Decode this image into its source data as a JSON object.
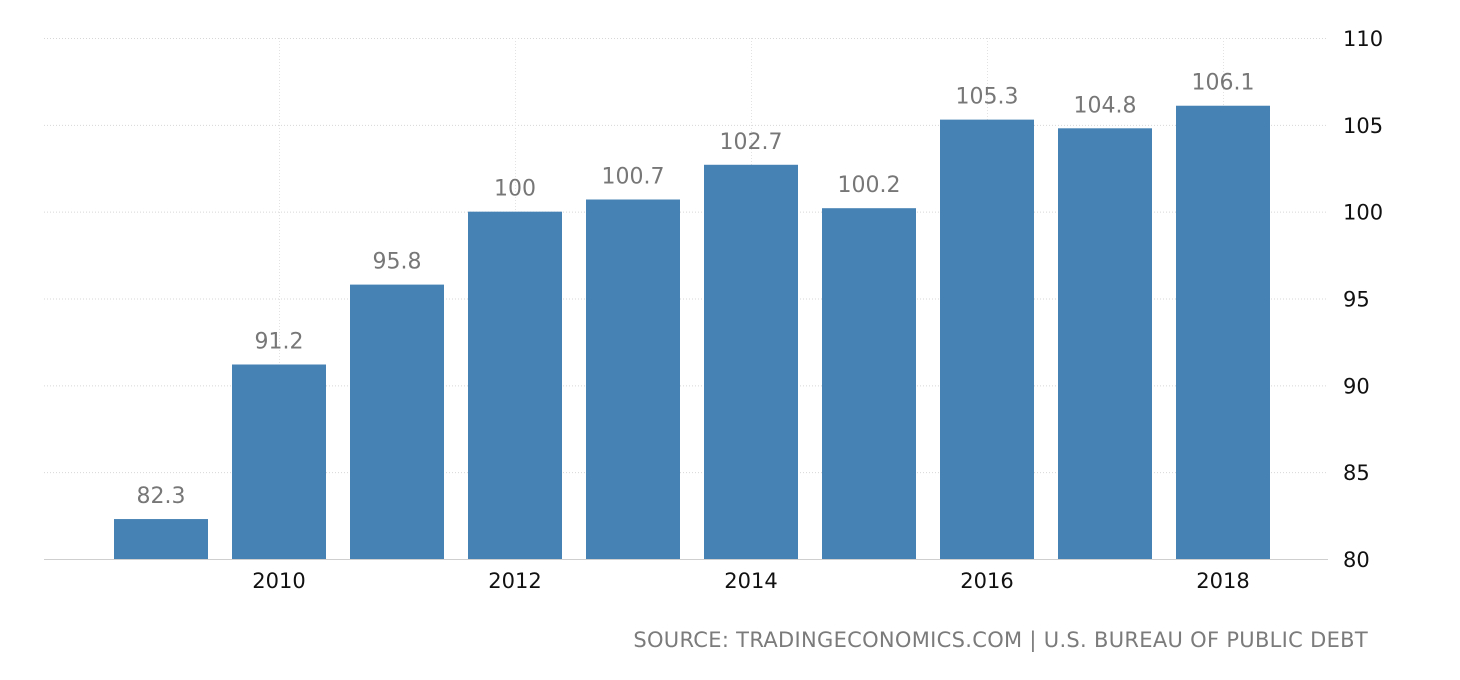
{
  "chart_data": {
    "type": "bar",
    "categories": [
      "2009",
      "2010",
      "2011",
      "2012",
      "2013",
      "2014",
      "2015",
      "2016",
      "2017",
      "2018"
    ],
    "values": [
      82.3,
      91.2,
      95.8,
      100,
      100.7,
      102.7,
      100.2,
      105.3,
      104.8,
      106.1
    ],
    "data_labels": [
      "82.3",
      "91.2",
      "95.8",
      "100",
      "100.7",
      "102.7",
      "100.2",
      "105.3",
      "104.8",
      "106.1"
    ],
    "x_tick_labels": [
      "2010",
      "2012",
      "2014",
      "2016",
      "2018"
    ],
    "y_ticks": [
      80,
      85,
      90,
      95,
      100,
      105,
      110
    ],
    "ylim": [
      80,
      110
    ],
    "y_axis_side": "right",
    "grid": true,
    "title": "",
    "xlabel": "",
    "ylabel": "",
    "bar_color": "#4682b4"
  },
  "source": "SOURCE: TRADINGECONOMICS.COM | U.S. BUREAU OF PUBLIC DEBT"
}
